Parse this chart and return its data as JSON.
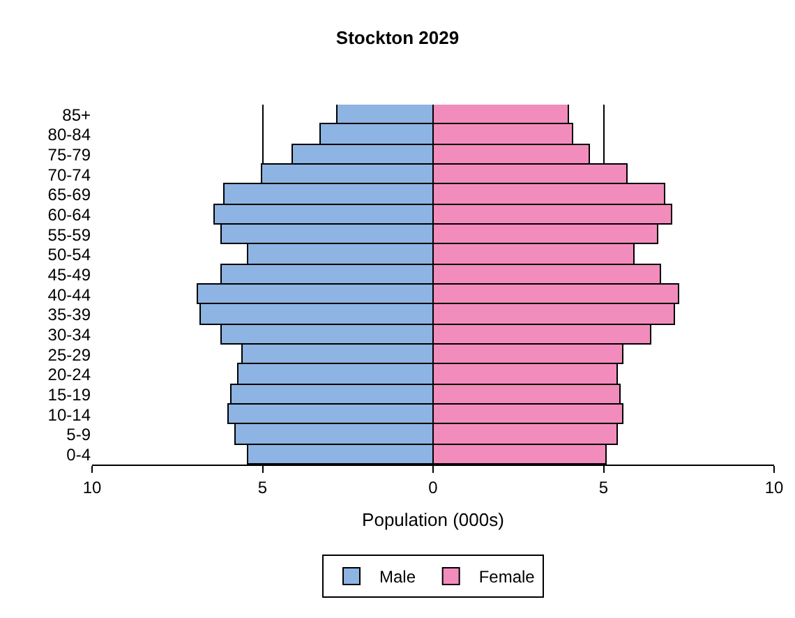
{
  "chart_data": {
    "type": "bar",
    "orientation": "horizontal",
    "title": "Stockton 2029",
    "xlabel": "Population (000s)",
    "categories": [
      "85+",
      "80-84",
      "75-79",
      "70-74",
      "65-69",
      "60-64",
      "55-59",
      "50-54",
      "45-49",
      "40-44",
      "35-39",
      "30-34",
      "25-29",
      "20-24",
      "15-19",
      "10-14",
      "5-9",
      "0-4"
    ],
    "series": [
      {
        "name": "Male",
        "color": "#8db4e2",
        "values": [
          -2.8,
          -3.3,
          -4.1,
          -5.0,
          -6.1,
          -6.4,
          -6.2,
          -5.4,
          -6.2,
          -6.9,
          -6.8,
          -6.2,
          -5.6,
          -5.7,
          -5.9,
          -6.0,
          -5.8,
          -5.4
        ]
      },
      {
        "name": "Female",
        "color": "#f28cbc",
        "values": [
          4.0,
          4.1,
          4.6,
          5.7,
          6.8,
          7.0,
          6.6,
          5.9,
          6.7,
          7.2,
          7.1,
          6.4,
          5.6,
          5.4,
          5.5,
          5.6,
          5.4,
          5.1
        ]
      }
    ],
    "xlim": [
      -10,
      10
    ],
    "xticks": [
      {
        "value": -10,
        "label": "10"
      },
      {
        "value": -5,
        "label": "5"
      },
      0,
      5,
      10
    ],
    "stacked": true,
    "grid": "x",
    "legend": "bottom"
  }
}
